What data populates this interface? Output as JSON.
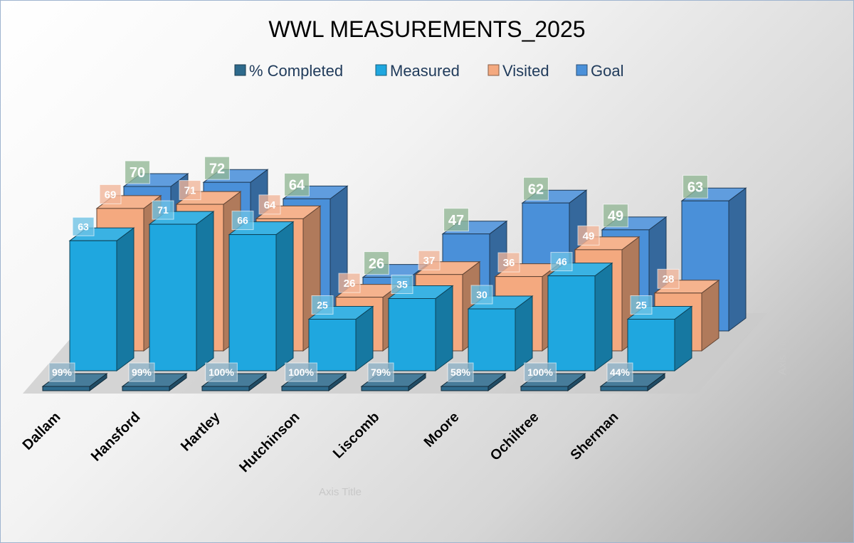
{
  "chart_data": {
    "type": "bar",
    "title": "WWL MEASUREMENTS_2025",
    "categories": [
      "Dallam",
      "Hansford",
      "Hartley",
      "Hutchinson",
      "Liscomb",
      "Moore",
      "Ochiltree",
      "Sherman"
    ],
    "series": [
      {
        "name": "% Completed",
        "values": [
          99,
          99,
          100,
          100,
          79,
          58,
          100,
          44
        ],
        "labels": [
          "99%",
          "99%",
          "100%",
          "100%",
          "79%",
          "58%",
          "100%",
          "44%"
        ],
        "color": "#2E6A8C"
      },
      {
        "name": "Measured",
        "values": [
          63,
          71,
          66,
          25,
          35,
          30,
          46,
          25
        ],
        "color": "#1FA7DF"
      },
      {
        "name": "Visited",
        "values": [
          69,
          71,
          64,
          26,
          37,
          36,
          49,
          28
        ],
        "color": "#F4A97F"
      },
      {
        "name": "Goal",
        "values": [
          70,
          72,
          64,
          26,
          47,
          62,
          49,
          63
        ],
        "color": "#4A90D9"
      }
    ],
    "xlabel": "Axis Title",
    "ylabel": "Axis Title",
    "legend": "top",
    "grid": false,
    "projection": "3d"
  }
}
